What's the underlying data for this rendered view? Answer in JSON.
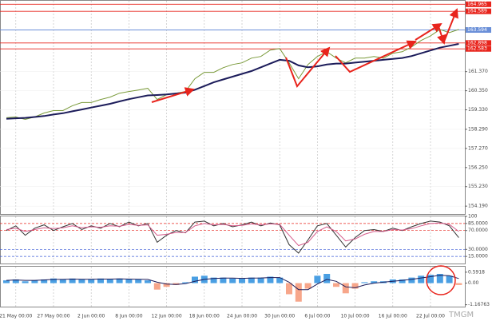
{
  "chart_data": [
    {
      "type": "line",
      "categories": [
        null,
        "21 May 00:00",
        null,
        null,
        null,
        "27 May 00:00",
        null,
        null,
        null,
        "2 Jun 00:00",
        null,
        null,
        null,
        "8 Jun 00:00",
        null,
        null,
        null,
        "12 Jun 00:00",
        null,
        null,
        null,
        "18 Jun 00:00",
        null,
        null,
        null,
        "24 Jun 00:00",
        null,
        null,
        null,
        "30 Jun 00:00",
        null,
        null,
        null,
        "6 Jul 00:00",
        null,
        null,
        null,
        "10 Jul 00:00",
        null,
        null,
        null,
        "16 Jul 00:00",
        null,
        null,
        null,
        "22 Jul 00:00",
        null,
        null,
        null
      ],
      "series": [
        {
          "color": "#7a9a3a",
          "values": [
            158.91,
            158.95,
            158.82,
            158.95,
            159.16,
            159.29,
            159.29,
            159.55,
            159.72,
            159.72,
            159.88,
            160.01,
            160.22,
            160.31,
            160.39,
            160.48,
            159.88,
            160.14,
            160.22,
            160.31,
            160.99,
            161.33,
            161.33,
            161.58,
            161.75,
            161.84,
            162.09,
            162.18,
            162.52,
            162.6,
            161.84,
            160.99,
            161.75,
            162.18,
            162.43,
            162.09,
            161.84,
            162.09,
            162.09,
            162.18,
            162.09,
            162.35,
            162.43,
            162.69,
            163.03,
            163.28,
            163.62,
            163.45,
            163.62
          ]
        },
        {
          "color": "#1c1c5a",
          "values": [
            158.85,
            158.88,
            158.9,
            158.95,
            159.0,
            159.08,
            159.15,
            159.25,
            159.35,
            159.45,
            159.55,
            159.65,
            159.78,
            159.9,
            160.0,
            160.1,
            160.12,
            160.15,
            160.2,
            160.25,
            160.4,
            160.6,
            160.8,
            160.95,
            161.1,
            161.25,
            161.4,
            161.6,
            161.8,
            162.0,
            161.95,
            161.7,
            161.6,
            161.65,
            161.75,
            161.8,
            161.8,
            161.85,
            161.9,
            161.95,
            162.0,
            162.05,
            162.1,
            162.2,
            162.35,
            162.5,
            162.65,
            162.75,
            162.85
          ]
        }
      ],
      "ylim": [
        153.77,
        165.15
      ],
      "yticks": [
        {
          "value": 161.37,
          "label": "161.370"
        },
        {
          "value": 160.35,
          "label": "160.350"
        },
        {
          "value": 159.33,
          "label": "159.330"
        },
        {
          "value": 158.29,
          "label": "158.290"
        },
        {
          "value": 157.27,
          "label": "157.270"
        },
        {
          "value": 156.25,
          "label": "156.250"
        },
        {
          "value": 155.23,
          "label": "155.230"
        },
        {
          "value": 154.19,
          "label": "154.190"
        }
      ],
      "hlines": [
        {
          "value": 164.965,
          "color": "#e8241c"
        },
        {
          "value": 164.589,
          "color": "#e8241c"
        },
        {
          "value": 163.594,
          "color": "#6a8fd8"
        },
        {
          "value": 162.898,
          "color": "#e8241c"
        },
        {
          "value": 162.583,
          "color": "#e8241c"
        }
      ],
      "grid": true,
      "watermark": "TMGM"
    },
    {
      "type": "line",
      "series": [
        {
          "color": "#333333",
          "values": [
            70,
            80,
            60,
            75,
            82,
            70,
            78,
            85,
            72,
            80,
            75,
            85,
            78,
            88,
            80,
            85,
            45,
            60,
            70,
            65,
            88,
            90,
            80,
            85,
            78,
            82,
            88,
            80,
            86,
            82,
            40,
            22,
            50,
            80,
            85,
            60,
            35,
            55,
            70,
            72,
            68,
            75,
            70,
            78,
            85,
            90,
            88,
            80,
            55
          ]
        },
        {
          "color": "#d45a8a",
          "values": [
            72,
            75,
            68,
            72,
            76,
            74,
            76,
            80,
            76,
            78,
            77,
            80,
            79,
            83,
            81,
            82,
            60,
            62,
            66,
            66,
            80,
            85,
            82,
            83,
            80,
            81,
            84,
            82,
            84,
            83,
            60,
            38,
            45,
            68,
            78,
            68,
            48,
            52,
            62,
            68,
            68,
            72,
            71,
            74,
            80,
            85,
            86,
            83,
            68
          ]
        }
      ],
      "ylim": [
        0,
        100
      ],
      "yticks": [
        100,
        {
          "value": 85,
          "label": "85.0000"
        },
        {
          "value": 70,
          "label": "70.0000"
        },
        {
          "value": 30,
          "label": "30.0000"
        },
        {
          "value": 15,
          "label": "15.0000"
        }
      ],
      "levels": [
        {
          "value": 85,
          "color": "#e8241c"
        },
        {
          "value": 70,
          "color": "#e8241c"
        },
        {
          "value": 30,
          "color": "#3a5bd8"
        },
        {
          "value": 15,
          "color": "#3a5bd8"
        }
      ]
    },
    {
      "type": "bar",
      "values": [
        0.15,
        0.2,
        0.1,
        0.15,
        0.2,
        0.25,
        0.2,
        0.25,
        0.2,
        0.2,
        0.25,
        0.2,
        0.25,
        0.2,
        0.2,
        0.15,
        -0.35,
        -0.2,
        -0.1,
        0.05,
        0.35,
        0.4,
        0.3,
        0.3,
        0.25,
        0.25,
        0.3,
        0.3,
        0.35,
        0.3,
        -0.6,
        -1.0,
        -0.3,
        0.4,
        0.5,
        -0.2,
        -0.55,
        -0.3,
        0.05,
        0.1,
        0.1,
        0.2,
        0.2,
        0.3,
        0.4,
        0.45,
        0.5,
        0.4,
        -0.1
      ],
      "color_up": "#4a9fe3",
      "color_down": "#f7a68a",
      "series": [
        {
          "color": "#1c1c5a",
          "values": [
            0.15,
            0.17,
            0.15,
            0.15,
            0.17,
            0.2,
            0.2,
            0.22,
            0.21,
            0.21,
            0.22,
            0.22,
            0.23,
            0.22,
            0.21,
            0.2,
            0.05,
            -0.05,
            -0.07,
            -0.03,
            0.1,
            0.2,
            0.25,
            0.27,
            0.27,
            0.26,
            0.27,
            0.28,
            0.3,
            0.3,
            0.05,
            -0.35,
            -0.35,
            -0.05,
            0.2,
            0.1,
            -0.2,
            -0.25,
            -0.1,
            0.0,
            0.05,
            0.1,
            0.15,
            0.2,
            0.28,
            0.35,
            0.42,
            0.4,
            0.25
          ]
        }
      ],
      "ylim": [
        -1.27,
        0.888
      ],
      "yticks": [
        0.5918,
        {
          "value": 0,
          "label": "0.00"
        },
        -1.16763
      ]
    }
  ]
}
